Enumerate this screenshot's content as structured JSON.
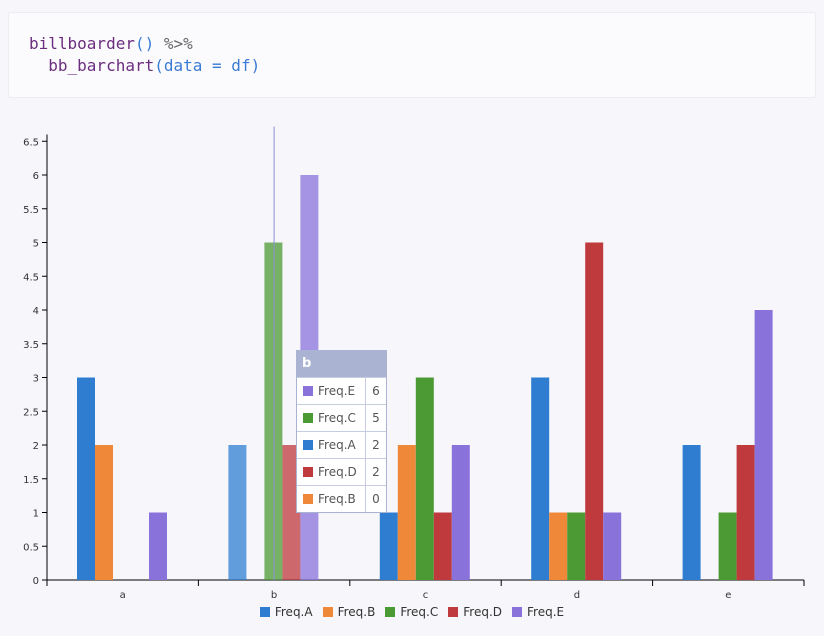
{
  "code": {
    "line1_fn": "billboarder",
    "line1_parens": "()",
    "line1_op": " %>%",
    "line2_fn": "bb_barchart",
    "line2_open": "(",
    "line2_arg": "data = df",
    "line2_close": ")"
  },
  "colors": {
    "Freq.A": "#2f7dd1",
    "Freq.B": "#f0883a",
    "Freq.C": "#4c9a34",
    "Freq.D": "#bf3a3c",
    "Freq.E": "#8a72db"
  },
  "chart_data": {
    "type": "bar",
    "categories": [
      "a",
      "b",
      "c",
      "d",
      "e"
    ],
    "series": [
      {
        "name": "Freq.A",
        "values": [
          3,
          2,
          1,
          3,
          2
        ]
      },
      {
        "name": "Freq.B",
        "values": [
          2,
          0,
          2,
          1,
          0
        ]
      },
      {
        "name": "Freq.C",
        "values": [
          0,
          5,
          3,
          1,
          1
        ]
      },
      {
        "name": "Freq.D",
        "values": [
          0,
          2,
          1,
          5,
          2
        ]
      },
      {
        "name": "Freq.E",
        "values": [
          1,
          6,
          2,
          1,
          4
        ]
      }
    ],
    "yticks": [
      "0",
      "0.5",
      "1",
      "1.5",
      "2",
      "2.5",
      "3",
      "3.5",
      "4",
      "4.5",
      "5",
      "5.5",
      "6",
      "6.5"
    ],
    "ylim": [
      0,
      6.6
    ],
    "legend": "bottom",
    "grid": false,
    "highlighted_category": "b"
  },
  "tooltip": {
    "title": "b",
    "rows": [
      {
        "name": "Freq.E",
        "value": "6"
      },
      {
        "name": "Freq.C",
        "value": "5"
      },
      {
        "name": "Freq.A",
        "value": "2"
      },
      {
        "name": "Freq.D",
        "value": "2"
      },
      {
        "name": "Freq.B",
        "value": "0"
      }
    ]
  },
  "legend": [
    "Freq.A",
    "Freq.B",
    "Freq.C",
    "Freq.D",
    "Freq.E"
  ]
}
